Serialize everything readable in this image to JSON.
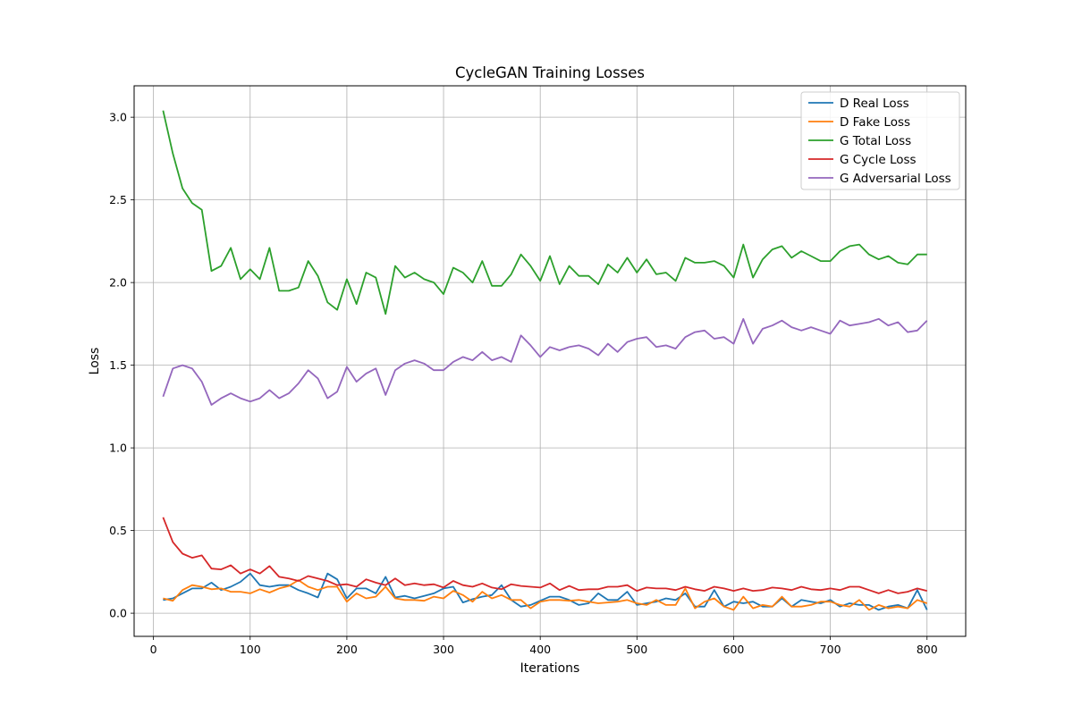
{
  "chart_data": {
    "type": "line",
    "title": "CycleGAN Training Losses",
    "xlabel": "Iterations",
    "ylabel": "Loss",
    "xlim": [
      -20,
      840
    ],
    "ylim": [
      -0.14,
      3.19
    ],
    "xticks": [
      0,
      100,
      200,
      300,
      400,
      500,
      600,
      700,
      800
    ],
    "yticks": [
      0.0,
      0.5,
      1.0,
      1.5,
      2.0,
      2.5,
      3.0
    ],
    "ytick_labels": [
      "0.0",
      "0.5",
      "1.0",
      "1.5",
      "2.0",
      "2.5",
      "3.0"
    ],
    "grid": true,
    "legend_position": "top-right",
    "x": [
      10,
      20,
      30,
      40,
      50,
      60,
      70,
      80,
      90,
      100,
      110,
      120,
      130,
      140,
      150,
      160,
      170,
      180,
      190,
      200,
      210,
      220,
      230,
      240,
      250,
      260,
      270,
      280,
      290,
      300,
      310,
      320,
      330,
      340,
      350,
      360,
      370,
      380,
      390,
      400,
      410,
      420,
      430,
      440,
      450,
      460,
      470,
      480,
      490,
      500,
      510,
      520,
      530,
      540,
      550,
      560,
      570,
      580,
      590,
      600,
      610,
      620,
      630,
      640,
      650,
      660,
      670,
      680,
      690,
      700,
      710,
      720,
      730,
      740,
      750,
      760,
      770,
      780,
      790,
      800
    ],
    "series": [
      {
        "name": "D Real Loss",
        "color": "#1f77b4",
        "values": [
          0.08,
          0.09,
          0.12,
          0.15,
          0.15,
          0.185,
          0.14,
          0.16,
          0.19,
          0.24,
          0.17,
          0.16,
          0.17,
          0.17,
          0.14,
          0.12,
          0.095,
          0.24,
          0.205,
          0.09,
          0.15,
          0.15,
          0.12,
          0.22,
          0.095,
          0.105,
          0.09,
          0.105,
          0.12,
          0.15,
          0.16,
          0.065,
          0.085,
          0.1,
          0.11,
          0.17,
          0.08,
          0.04,
          0.05,
          0.075,
          0.1,
          0.1,
          0.08,
          0.05,
          0.06,
          0.12,
          0.08,
          0.08,
          0.13,
          0.05,
          0.06,
          0.07,
          0.09,
          0.08,
          0.12,
          0.04,
          0.04,
          0.14,
          0.04,
          0.07,
          0.06,
          0.07,
          0.04,
          0.04,
          0.09,
          0.04,
          0.08,
          0.07,
          0.06,
          0.08,
          0.04,
          0.06,
          0.05,
          0.05,
          0.02,
          0.04,
          0.05,
          0.03,
          0.14,
          0.02
        ]
      },
      {
        "name": "D Fake Loss",
        "color": "#ff7f0e",
        "values": [
          0.09,
          0.075,
          0.14,
          0.17,
          0.16,
          0.145,
          0.15,
          0.13,
          0.13,
          0.12,
          0.145,
          0.125,
          0.15,
          0.165,
          0.2,
          0.16,
          0.14,
          0.16,
          0.16,
          0.07,
          0.12,
          0.09,
          0.1,
          0.16,
          0.09,
          0.08,
          0.08,
          0.075,
          0.1,
          0.09,
          0.135,
          0.11,
          0.07,
          0.13,
          0.09,
          0.11,
          0.08,
          0.08,
          0.03,
          0.07,
          0.08,
          0.08,
          0.075,
          0.08,
          0.07,
          0.06,
          0.065,
          0.07,
          0.08,
          0.06,
          0.05,
          0.08,
          0.05,
          0.05,
          0.15,
          0.03,
          0.07,
          0.09,
          0.04,
          0.02,
          0.1,
          0.03,
          0.05,
          0.04,
          0.1,
          0.04,
          0.04,
          0.05,
          0.07,
          0.07,
          0.05,
          0.04,
          0.08,
          0.02,
          0.05,
          0.03,
          0.04,
          0.03,
          0.08,
          0.06
        ]
      },
      {
        "name": "G Total Loss",
        "color": "#2ca02c",
        "values": [
          3.04,
          2.78,
          2.57,
          2.48,
          2.44,
          2.07,
          2.1,
          2.21,
          2.02,
          2.08,
          2.02,
          2.21,
          1.95,
          1.95,
          1.97,
          2.13,
          2.04,
          1.88,
          1.835,
          2.02,
          1.87,
          2.06,
          2.03,
          1.81,
          2.1,
          2.03,
          2.06,
          2.02,
          2.0,
          1.93,
          2.09,
          2.06,
          2.0,
          2.13,
          1.98,
          1.98,
          2.05,
          2.17,
          2.1,
          2.01,
          2.16,
          1.99,
          2.1,
          2.04,
          2.04,
          1.99,
          2.11,
          2.06,
          2.15,
          2.06,
          2.14,
          2.05,
          2.06,
          2.01,
          2.15,
          2.12,
          2.12,
          2.13,
          2.1,
          2.03,
          2.23,
          2.03,
          2.14,
          2.2,
          2.22,
          2.15,
          2.19,
          2.16,
          2.13,
          2.13,
          2.19,
          2.22,
          2.23,
          2.17,
          2.14,
          2.16,
          2.12,
          2.11,
          2.17,
          2.17
        ]
      },
      {
        "name": "G Cycle Loss",
        "color": "#d62728",
        "values": [
          0.58,
          0.43,
          0.36,
          0.335,
          0.35,
          0.27,
          0.265,
          0.29,
          0.24,
          0.265,
          0.24,
          0.285,
          0.22,
          0.21,
          0.195,
          0.225,
          0.21,
          0.195,
          0.17,
          0.175,
          0.16,
          0.205,
          0.185,
          0.17,
          0.21,
          0.17,
          0.18,
          0.17,
          0.175,
          0.155,
          0.195,
          0.17,
          0.16,
          0.18,
          0.155,
          0.145,
          0.175,
          0.165,
          0.16,
          0.155,
          0.18,
          0.14,
          0.165,
          0.14,
          0.145,
          0.145,
          0.16,
          0.16,
          0.17,
          0.135,
          0.155,
          0.15,
          0.15,
          0.14,
          0.16,
          0.145,
          0.135,
          0.16,
          0.15,
          0.135,
          0.15,
          0.135,
          0.14,
          0.155,
          0.15,
          0.14,
          0.16,
          0.145,
          0.14,
          0.15,
          0.14,
          0.16,
          0.16,
          0.14,
          0.12,
          0.14,
          0.12,
          0.13,
          0.15,
          0.135
        ]
      },
      {
        "name": "G Adversarial Loss",
        "color": "#9467bd",
        "values": [
          1.31,
          1.48,
          1.5,
          1.48,
          1.4,
          1.26,
          1.3,
          1.33,
          1.3,
          1.28,
          1.3,
          1.35,
          1.3,
          1.33,
          1.39,
          1.47,
          1.42,
          1.3,
          1.34,
          1.49,
          1.4,
          1.45,
          1.48,
          1.32,
          1.47,
          1.51,
          1.53,
          1.51,
          1.47,
          1.47,
          1.52,
          1.55,
          1.53,
          1.58,
          1.53,
          1.55,
          1.52,
          1.68,
          1.62,
          1.55,
          1.61,
          1.59,
          1.61,
          1.62,
          1.6,
          1.56,
          1.63,
          1.58,
          1.64,
          1.66,
          1.67,
          1.61,
          1.62,
          1.6,
          1.67,
          1.7,
          1.71,
          1.66,
          1.67,
          1.63,
          1.78,
          1.63,
          1.72,
          1.74,
          1.77,
          1.73,
          1.71,
          1.73,
          1.71,
          1.69,
          1.77,
          1.74,
          1.75,
          1.76,
          1.78,
          1.74,
          1.76,
          1.7,
          1.71,
          1.77
        ]
      }
    ]
  }
}
